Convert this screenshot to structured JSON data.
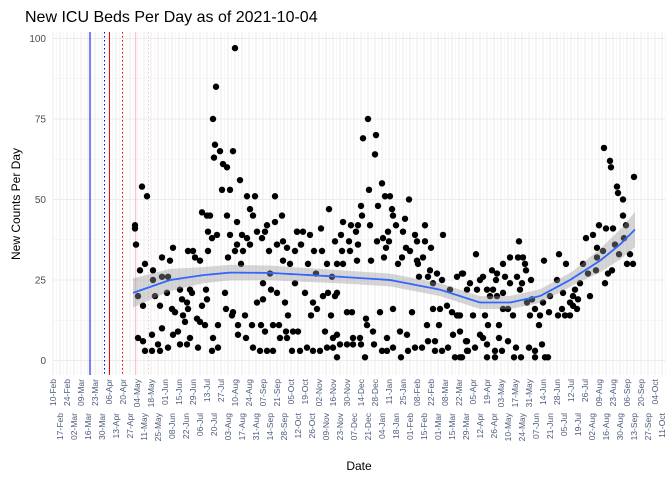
{
  "chart_data": {
    "type": "scatter",
    "title": "New ICU Beds Per Day as of 2021-10-04",
    "xlabel": "Date",
    "ylabel": "New Counts Per Day",
    "x_unit": "days since 10-Feb-2020",
    "xlim": [
      0,
      612
    ],
    "ylim": [
      -4.5,
      102
    ],
    "y_ticks": [
      0,
      25,
      50,
      75,
      100
    ],
    "x_tick_step_days": 7,
    "x_tick_labels": [
      "10-Feb",
      "17-Feb",
      "24-Feb",
      "02-Mar",
      "09-Mar",
      "16-Mar",
      "23-Mar",
      "30-Mar",
      "06-Apr",
      "13-Apr",
      "20-Apr",
      "27-Apr",
      "04-May",
      "11-May",
      "18-May",
      "25-May",
      "01-Jun",
      "08-Jun",
      "15-Jun",
      "22-Jun",
      "29-Jun",
      "06-Jul",
      "13-Jul",
      "20-Jul",
      "27-Jul",
      "03-Aug",
      "10-Aug",
      "17-Aug",
      "24-Aug",
      "31-Aug",
      "07-Sep",
      "14-Sep",
      "21-Sep",
      "28-Sep",
      "05-Oct",
      "12-Oct",
      "19-Oct",
      "26-Oct",
      "02-Nov",
      "09-Nov",
      "16-Nov",
      "23-Nov",
      "30-Nov",
      "07-Dec",
      "14-Dec",
      "21-Dec",
      "28-Dec",
      "04-Jan",
      "11-Jan",
      "18-Jan",
      "25-Jan",
      "01-Feb",
      "08-Feb",
      "15-Feb",
      "22-Feb",
      "01-Mar",
      "08-Mar",
      "15-Mar",
      "22-Mar",
      "29-Mar",
      "05-Apr",
      "12-Apr",
      "19-Apr",
      "26-Apr",
      "03-May",
      "10-May",
      "17-May",
      "24-May",
      "31-May",
      "07-Jun",
      "14-Jun",
      "21-Jun",
      "28-Jun",
      "05-Jul",
      "12-Jul",
      "19-Jul",
      "26-Jul",
      "02-Aug",
      "09-Aug",
      "16-Aug",
      "23-Aug",
      "30-Aug",
      "06-Sep",
      "13-Sep",
      "20-Sep",
      "27-Sep",
      "04-Oct",
      "11-Oct"
    ],
    "grid": true,
    "vlines": [
      {
        "x": 37,
        "color": "#0000FF",
        "style": "solid"
      },
      {
        "x": 51.5,
        "color": "#0000FF",
        "style": "dotted"
      },
      {
        "x": 56.5,
        "color": "#FF0000",
        "style": "solid"
      },
      {
        "x": 69.5,
        "color": "#FF0000",
        "style": "dotted"
      },
      {
        "x": 82.5,
        "color": "#FFC0CB",
        "style": "solid"
      },
      {
        "x": 95.5,
        "color": "#FFC0CB",
        "style": "dotted"
      }
    ],
    "point_color": "#000000",
    "smooth_color": "#3366FF",
    "band_color": "#999999",
    "smooth": [
      [
        80,
        21
      ],
      [
        117,
        25
      ],
      [
        150,
        26.5
      ],
      [
        177,
        27.3
      ],
      [
        217,
        27.2
      ],
      [
        287,
        26
      ],
      [
        337,
        25
      ],
      [
        387,
        22
      ],
      [
        427,
        18
      ],
      [
        457,
        18
      ],
      [
        487,
        20
      ],
      [
        517,
        25
      ],
      [
        547,
        31
      ],
      [
        567,
        36
      ],
      [
        583,
        41
      ]
    ],
    "smooth_se": [
      [
        80,
        4.5
      ],
      [
        150,
        2.5
      ],
      [
        300,
        2
      ],
      [
        450,
        2
      ],
      [
        520,
        2.2
      ],
      [
        583,
        5.5
      ]
    ],
    "points": [
      [
        82,
        42
      ],
      [
        82,
        41
      ],
      [
        83,
        36
      ],
      [
        89,
        54
      ],
      [
        94,
        51
      ],
      [
        87,
        28
      ],
      [
        92,
        30
      ],
      [
        100,
        28
      ],
      [
        85,
        7
      ],
      [
        90,
        6
      ],
      [
        92,
        3
      ],
      [
        99,
        8
      ],
      [
        99,
        3
      ],
      [
        105,
        5
      ],
      [
        107,
        3
      ],
      [
        109,
        10
      ],
      [
        115,
        4
      ],
      [
        85,
        20
      ],
      [
        90,
        17
      ],
      [
        100,
        25
      ],
      [
        109,
        26
      ],
      [
        102,
        20
      ],
      [
        107,
        17
      ],
      [
        114,
        21
      ],
      [
        109,
        32
      ],
      [
        117,
        31
      ],
      [
        120,
        35
      ],
      [
        115,
        26
      ],
      [
        119,
        16
      ],
      [
        122,
        15
      ],
      [
        127,
        22
      ],
      [
        129,
        19
      ],
      [
        130,
        14
      ],
      [
        132,
        12
      ],
      [
        120,
        8
      ],
      [
        125,
        9
      ],
      [
        127,
        5
      ],
      [
        134,
        5
      ],
      [
        137,
        7
      ],
      [
        135,
        34
      ],
      [
        140,
        34
      ],
      [
        142,
        32
      ],
      [
        147,
        31
      ],
      [
        137,
        22
      ],
      [
        139,
        21
      ],
      [
        134,
        18
      ],
      [
        135,
        16
      ],
      [
        144,
        13
      ],
      [
        145,
        4
      ],
      [
        147,
        12
      ],
      [
        152,
        11
      ],
      [
        149,
        17
      ],
      [
        154,
        19
      ],
      [
        153,
        22
      ],
      [
        155,
        34
      ],
      [
        155,
        40
      ],
      [
        149,
        46
      ],
      [
        154,
        45
      ],
      [
        157,
        45
      ],
      [
        159,
        38
      ],
      [
        164,
        39
      ],
      [
        160,
        75
      ],
      [
        163,
        85
      ],
      [
        182,
        97
      ],
      [
        162,
        67
      ],
      [
        167,
        65
      ],
      [
        161,
        63
      ],
      [
        170,
        61
      ],
      [
        174,
        60
      ],
      [
        180,
        65
      ],
      [
        169,
        53
      ],
      [
        177,
        53
      ],
      [
        187,
        56
      ],
      [
        194,
        51
      ],
      [
        202,
        51
      ],
      [
        174,
        45
      ],
      [
        184,
        43
      ],
      [
        197,
        47
      ],
      [
        200,
        45
      ],
      [
        177,
        39
      ],
      [
        189,
        39
      ],
      [
        194,
        38
      ],
      [
        197,
        36
      ],
      [
        184,
        36
      ],
      [
        182,
        34
      ],
      [
        190,
        34
      ],
      [
        175,
        32
      ],
      [
        204,
        40
      ],
      [
        212,
        40
      ],
      [
        214,
        42
      ],
      [
        222,
        43
      ],
      [
        229,
        45
      ],
      [
        222,
        51
      ],
      [
        209,
        38
      ],
      [
        216,
        34
      ],
      [
        224,
        36
      ],
      [
        230,
        37
      ],
      [
        234,
        35
      ],
      [
        242,
        34
      ],
      [
        244,
        40
      ],
      [
        230,
        31
      ],
      [
        237,
        30
      ],
      [
        188,
        30
      ],
      [
        210,
        24
      ],
      [
        217,
        27
      ],
      [
        218,
        22
      ],
      [
        224,
        21
      ],
      [
        242,
        24
      ],
      [
        172,
        21
      ],
      [
        204,
        18
      ],
      [
        210,
        19
      ],
      [
        232,
        18
      ],
      [
        235,
        14
      ],
      [
        173,
        16
      ],
      [
        180,
        15
      ],
      [
        179,
        14
      ],
      [
        192,
        14
      ],
      [
        185,
        11
      ],
      [
        199,
        11
      ],
      [
        208,
        11
      ],
      [
        212,
        9
      ],
      [
        220,
        11
      ],
      [
        226,
        11
      ],
      [
        233,
        9
      ],
      [
        240,
        9
      ],
      [
        185,
        8
      ],
      [
        193,
        7
      ],
      [
        165,
        4
      ],
      [
        159,
        3
      ],
      [
        160,
        7
      ],
      [
        165,
        11
      ],
      [
        200,
        4
      ],
      [
        207,
        3
      ],
      [
        214,
        3
      ],
      [
        220,
        3
      ],
      [
        227,
        7
      ],
      [
        234,
        7
      ],
      [
        239,
        3
      ],
      [
        315,
        75
      ],
      [
        310,
        69
      ],
      [
        323,
        70
      ],
      [
        322,
        64
      ],
      [
        329,
        55
      ],
      [
        316,
        53
      ],
      [
        332,
        51
      ],
      [
        337,
        51
      ],
      [
        356,
        50
      ],
      [
        308,
        48
      ],
      [
        325,
        48
      ],
      [
        276,
        47
      ],
      [
        309,
        45
      ],
      [
        339,
        47
      ],
      [
        340,
        45
      ],
      [
        352,
        44
      ],
      [
        290,
        43
      ],
      [
        298,
        42
      ],
      [
        305,
        42
      ],
      [
        317,
        42
      ],
      [
        343,
        42
      ],
      [
        372,
        42
      ],
      [
        268,
        41
      ],
      [
        244,
        40
      ],
      [
        250,
        40
      ],
      [
        257,
        39
      ],
      [
        288,
        39
      ],
      [
        303,
        40
      ],
      [
        335,
        40
      ],
      [
        350,
        40
      ],
      [
        390,
        39
      ],
      [
        362,
        39
      ],
      [
        282,
        37
      ],
      [
        296,
        37
      ],
      [
        305,
        36
      ],
      [
        324,
        37
      ],
      [
        330,
        38
      ],
      [
        336,
        37
      ],
      [
        364,
        37
      ],
      [
        372,
        37
      ],
      [
        248,
        36
      ],
      [
        261,
        34
      ],
      [
        269,
        34
      ],
      [
        289,
        34
      ],
      [
        297,
        34
      ],
      [
        333,
        35
      ],
      [
        353,
        35
      ],
      [
        378,
        35
      ],
      [
        357,
        34
      ],
      [
        304,
        31
      ],
      [
        318,
        31
      ],
      [
        331,
        32
      ],
      [
        349,
        32
      ],
      [
        364,
        31
      ],
      [
        370,
        32
      ],
      [
        255,
        30
      ],
      [
        274,
        30
      ],
      [
        284,
        30
      ],
      [
        290,
        30
      ],
      [
        345,
        30
      ],
      [
        365,
        30
      ],
      [
        263,
        27
      ],
      [
        377,
        28
      ],
      [
        384,
        27
      ],
      [
        279,
        26
      ],
      [
        366,
        26
      ],
      [
        375,
        26
      ],
      [
        389,
        25
      ],
      [
        404,
        26
      ],
      [
        409,
        27
      ],
      [
        380,
        24
      ],
      [
        252,
        21
      ],
      [
        270,
        20
      ],
      [
        275,
        21
      ],
      [
        284,
        21
      ],
      [
        282,
        20
      ],
      [
        397,
        22
      ],
      [
        260,
        18
      ],
      [
        264,
        16
      ],
      [
        294,
        15
      ],
      [
        299,
        15
      ],
      [
        327,
        15
      ],
      [
        340,
        16
      ],
      [
        359,
        15
      ],
      [
        380,
        16
      ],
      [
        387,
        16
      ],
      [
        394,
        17
      ],
      [
        399,
        15
      ],
      [
        404,
        14
      ],
      [
        258,
        14
      ],
      [
        278,
        14
      ],
      [
        313,
        13
      ],
      [
        314,
        11
      ],
      [
        374,
        11
      ],
      [
        386,
        11
      ],
      [
        405,
        14
      ],
      [
        245,
        9
      ],
      [
        272,
        9
      ],
      [
        284,
        8
      ],
      [
        280,
        7
      ],
      [
        300,
        7
      ],
      [
        307,
        7
      ],
      [
        320,
        9
      ],
      [
        334,
        7
      ],
      [
        347,
        9
      ],
      [
        354,
        8
      ],
      [
        375,
        6
      ],
      [
        382,
        6
      ],
      [
        400,
        8
      ],
      [
        407,
        9
      ],
      [
        413,
        6
      ],
      [
        247,
        3
      ],
      [
        254,
        4
      ],
      [
        260,
        3
      ],
      [
        267,
        3
      ],
      [
        274,
        4
      ],
      [
        280,
        4
      ],
      [
        287,
        5
      ],
      [
        294,
        5
      ],
      [
        300,
        5
      ],
      [
        308,
        5
      ],
      [
        284,
        1
      ],
      [
        312,
        1
      ],
      [
        321,
        5
      ],
      [
        329,
        3
      ],
      [
        334,
        3
      ],
      [
        340,
        4
      ],
      [
        348,
        1
      ],
      [
        355,
        3
      ],
      [
        362,
        4
      ],
      [
        369,
        4
      ],
      [
        382,
        3
      ],
      [
        389,
        3
      ],
      [
        395,
        4
      ],
      [
        402,
        1
      ],
      [
        409,
        1
      ],
      [
        414,
        3
      ],
      [
        551,
        66
      ],
      [
        557,
        62
      ],
      [
        558,
        60
      ],
      [
        581,
        57
      ],
      [
        564,
        54
      ],
      [
        565,
        52
      ],
      [
        570,
        50
      ],
      [
        570,
        45
      ],
      [
        573,
        42
      ],
      [
        546,
        42
      ],
      [
        553,
        41
      ],
      [
        560,
        41
      ],
      [
        540,
        39
      ],
      [
        533,
        38
      ],
      [
        466,
        37
      ],
      [
        423,
        33
      ],
      [
        457,
        32
      ],
      [
        465,
        32
      ],
      [
        470,
        32
      ],
      [
        491,
        31
      ],
      [
        506,
        33
      ],
      [
        513,
        30
      ],
      [
        544,
        35
      ],
      [
        550,
        34
      ],
      [
        562,
        36
      ],
      [
        571,
        38
      ],
      [
        566,
        33
      ],
      [
        577,
        33
      ],
      [
        574,
        30
      ],
      [
        580,
        30
      ],
      [
        450,
        30
      ],
      [
        472,
        30
      ],
      [
        473,
        28
      ],
      [
        439,
        28
      ],
      [
        444,
        27
      ],
      [
        410,
        27
      ],
      [
        430,
        26
      ],
      [
        452,
        26
      ],
      [
        464,
        26
      ],
      [
        478,
        25
      ],
      [
        427,
        25
      ],
      [
        443,
        25
      ],
      [
        457,
        24
      ],
      [
        469,
        24
      ],
      [
        417,
        24
      ],
      [
        530,
        30
      ],
      [
        544,
        32
      ],
      [
        555,
        27
      ],
      [
        559,
        28
      ],
      [
        543,
        28
      ],
      [
        535,
        27
      ],
      [
        504,
        25
      ],
      [
        527,
        24
      ],
      [
        552,
        24
      ],
      [
        414,
        22
      ],
      [
        424,
        22
      ],
      [
        434,
        22
      ],
      [
        440,
        22
      ],
      [
        467,
        22
      ],
      [
        450,
        21
      ],
      [
        522,
        22
      ],
      [
        444,
        20
      ],
      [
        437,
        20
      ],
      [
        510,
        21
      ],
      [
        537,
        20
      ],
      [
        497,
        20
      ],
      [
        520,
        20
      ],
      [
        525,
        19
      ],
      [
        517,
        18
      ],
      [
        490,
        18
      ],
      [
        474,
        18
      ],
      [
        482,
        16
      ],
      [
        479,
        19
      ],
      [
        450,
        16
      ],
      [
        455,
        16
      ],
      [
        487,
        14
      ],
      [
        509,
        16
      ],
      [
        524,
        16
      ],
      [
        496,
        15
      ],
      [
        520,
        17
      ],
      [
        432,
        14
      ],
      [
        460,
        14
      ],
      [
        477,
        14
      ],
      [
        420,
        14
      ],
      [
        407,
        14
      ],
      [
        505,
        14
      ],
      [
        512,
        14
      ],
      [
        517,
        14
      ],
      [
        435,
        11
      ],
      [
        446,
        11
      ],
      [
        486,
        11
      ],
      [
        427,
        8
      ],
      [
        430,
        7
      ],
      [
        446,
        7
      ],
      [
        455,
        6
      ],
      [
        414,
        6
      ],
      [
        422,
        4
      ],
      [
        434,
        5
      ],
      [
        442,
        3
      ],
      [
        449,
        3
      ],
      [
        463,
        4
      ],
      [
        476,
        4
      ],
      [
        489,
        5
      ],
      [
        482,
        3
      ],
      [
        434,
        1
      ],
      [
        442,
        1
      ],
      [
        461,
        1
      ],
      [
        468,
        1
      ],
      [
        482,
        1
      ],
      [
        492,
        1
      ],
      [
        495,
        1
      ],
      [
        415,
        3
      ],
      [
        407,
        1
      ]
    ]
  }
}
